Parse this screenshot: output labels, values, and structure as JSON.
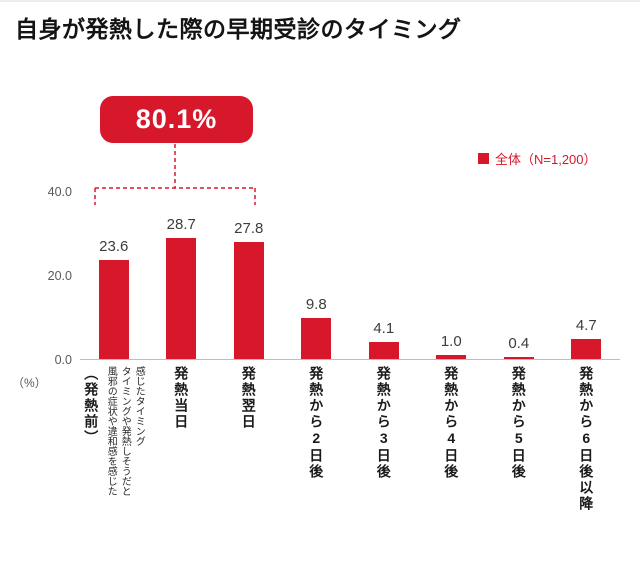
{
  "title": "自身が発熱した際の早期受診のタイミング",
  "legend": {
    "label": "全体（N=1,200）",
    "marker_color": "#d7182b"
  },
  "callout": {
    "label": "80.1%"
  },
  "axis": {
    "yticks": {
      "t40": "40.0",
      "t20": "20.0",
      "t0": "0.0"
    },
    "unit_label": "（%）"
  },
  "chart_data": {
    "type": "bar",
    "title": "自身が発熱した際の早期受診のタイミング",
    "categories": [
      "（発熱前）風邪の症状や違和感を感じたタイミングや発熱しそうだと感じたタイミング",
      "発熱当日",
      "発熱翌日",
      "発熱から2日後",
      "発熱から3日後",
      "発熱から4日後",
      "発熱から5日後",
      "発熱から6日後以降"
    ],
    "values": [
      23.6,
      28.7,
      27.8,
      9.8,
      4.1,
      1.0,
      0.4,
      4.7
    ],
    "ylabel": "（%）",
    "ylim": [
      0,
      40
    ],
    "yticks": [
      0.0,
      20.0,
      40.0
    ],
    "grid": false,
    "bar_color": "#d7182b",
    "legend_entries": [
      "全体（N=1,200）"
    ],
    "legend_position": "top-right",
    "annotation": {
      "text": "80.1%",
      "span_categories": [
        "（発熱前）",
        "発熱当日",
        "発熱翌日"
      ],
      "meaning": "sum of first three bars"
    }
  },
  "bars": [
    {
      "value_label": "23.6",
      "label_main": "（発熱前）",
      "label_sub": "風邪の症状や違和感を感じたタイミングや発熱しそうだと感じたタイミング"
    },
    {
      "value_label": "28.7",
      "label": "発熱当日"
    },
    {
      "value_label": "27.8",
      "label": "発熱翌日"
    },
    {
      "value_label": "9.8",
      "label": "発熱から2日後"
    },
    {
      "value_label": "4.1",
      "label": "発熱から3日後"
    },
    {
      "value_label": "1.0",
      "label": "発熱から4日後"
    },
    {
      "value_label": "0.4",
      "label": "発熱から5日後"
    },
    {
      "value_label": "4.7",
      "label": "発熱から6日後以降"
    }
  ]
}
